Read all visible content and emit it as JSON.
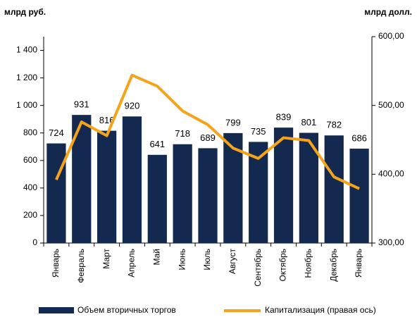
{
  "chart_data": {
    "type": "bar_line",
    "y_label": "млрд руб.",
    "y2_label": "млрд долл.",
    "categories": [
      "Январь",
      "Февраль",
      "Март",
      "Апрель",
      "Май",
      "Июнь",
      "Июль",
      "Август",
      "Сентябрь",
      "Октябрь",
      "Ноябрь",
      "Декабрь",
      "Январь"
    ],
    "series": [
      {
        "name": "Объем вторичных торгов",
        "color": "#13294f",
        "values": [
          724,
          931,
          816,
          920,
          641,
          718,
          689,
          799,
          735,
          839,
          801,
          782,
          686
        ]
      },
      {
        "name": "Капитализация (правая ось)",
        "color": "#f5a31a",
        "axis": "y2",
        "values": [
          392,
          476,
          456,
          544,
          528,
          492,
          472,
          438,
          423,
          453,
          449,
          396,
          379
        ]
      }
    ],
    "ylim": [
      0,
      1500
    ],
    "yticks": [
      0,
      200,
      400,
      600,
      800,
      {
        "value": 1000,
        "label": "1 000"
      },
      {
        "value": 1200,
        "label": "1 200"
      },
      {
        "value": 1400,
        "label": "1 400"
      }
    ],
    "y2lim": [
      300,
      600
    ],
    "y2ticks": [
      {
        "value": 300,
        "label": "300,00"
      },
      {
        "value": 400,
        "label": "400,00"
      },
      {
        "value": 500,
        "label": "500,00"
      },
      {
        "value": 600,
        "label": "600,00"
      }
    ]
  }
}
